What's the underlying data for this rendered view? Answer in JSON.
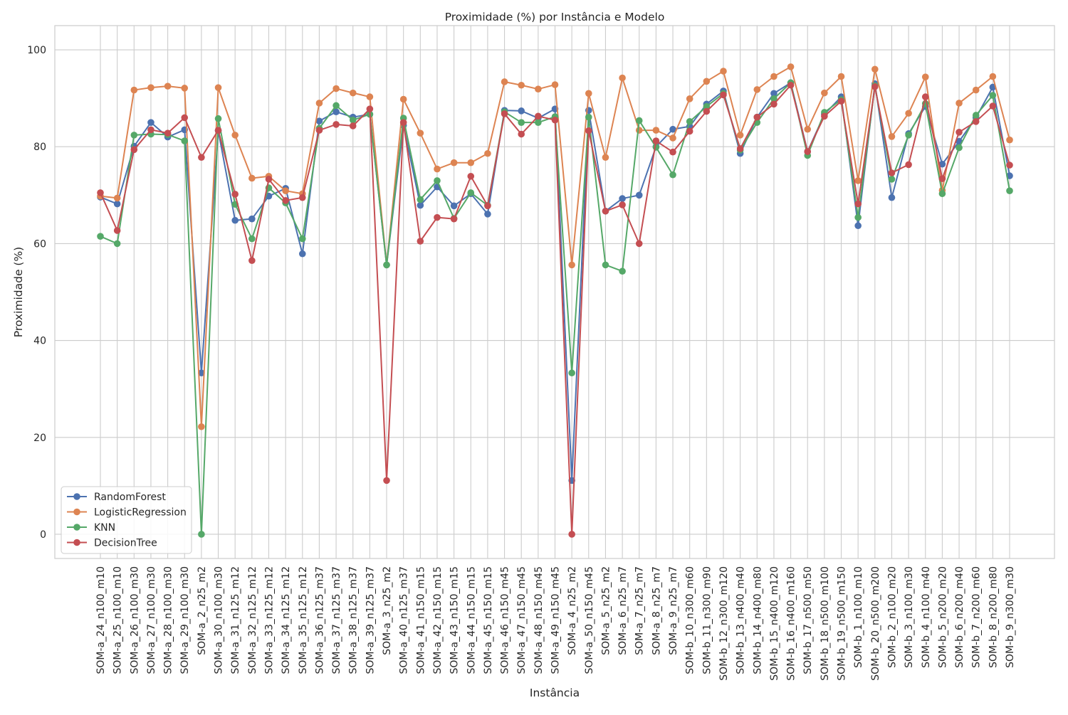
{
  "chart_data": {
    "type": "line",
    "title": "Proximidade (%) por Instância e Modelo",
    "xlabel": "Instância",
    "ylabel": "Proximidade (%)",
    "ylim": [
      -5,
      105
    ],
    "yticks": [
      "0",
      "20",
      "40",
      "60",
      "80",
      "100"
    ],
    "grid": true,
    "legend_position": "lower-left",
    "categories": [
      "SOM-a_24_n100_m10",
      "SOM-a_25_n100_m10",
      "SOM-a_26_n100_m30",
      "SOM-a_27_n100_m30",
      "SOM-a_28_n100_m30",
      "SOM-a_29_n100_m30",
      "SOM-a_2_n25_m2",
      "SOM-a_30_n100_m30",
      "SOM-a_31_n125_m12",
      "SOM-a_32_n125_m12",
      "SOM-a_33_n125_m12",
      "SOM-a_34_n125_m12",
      "SOM-a_35_n125_m12",
      "SOM-a_36_n125_m37",
      "SOM-a_37_n125_m37",
      "SOM-a_38_n125_m37",
      "SOM-a_39_n125_m37",
      "SOM-a_3_n25_m2",
      "SOM-a_40_n125_m37",
      "SOM-a_41_n150_m15",
      "SOM-a_42_n150_m15",
      "SOM-a_43_n150_m15",
      "SOM-a_44_n150_m15",
      "SOM-a_45_n150_m15",
      "SOM-a_46_n150_m45",
      "SOM-a_47_n150_m45",
      "SOM-a_48_n150_m45",
      "SOM-a_49_n150_m45",
      "SOM-a_4_n25_m2",
      "SOM-a_50_n150_m45",
      "SOM-a_5_n25_m2",
      "SOM-a_6_n25_m7",
      "SOM-a_7_n25_m7",
      "SOM-a_8_n25_m7",
      "SOM-a_9_n25_m7",
      "SOM-b_10_n300_m60",
      "SOM-b_11_n300_m90",
      "SOM-b_12_n300_m120",
      "SOM-b_13_n400_m40",
      "SOM-b_14_n400_m80",
      "SOM-b_15_n400_m120",
      "SOM-b_16_n400_m160",
      "SOM-b_17_n500_m50",
      "SOM-b_18_n500_m100",
      "SOM-b_19_n500_m150",
      "SOM-b_1_n100_m10",
      "SOM-b_20_n500_m200",
      "SOM-b_2_n100_m20",
      "SOM-b_3_n100_m30",
      "SOM-b_4_n100_m40",
      "SOM-b_5_n200_m20",
      "SOM-b_6_n200_m40",
      "SOM-b_7_n200_m60",
      "SOM-b_8_n200_m80",
      "SOM-b_9_n300_m30"
    ],
    "series": [
      {
        "name": "RandomForest",
        "color": "#4c72b0",
        "values": [
          69.6,
          68.2,
          80.1,
          85.0,
          82.0,
          83.5,
          33.3,
          83.3,
          64.8,
          65.1,
          69.8,
          71.4,
          57.9,
          85.3,
          87.2,
          86.1,
          86.7,
          55.6,
          84.4,
          67.9,
          71.7,
          67.8,
          70.3,
          66.1,
          87.5,
          87.4,
          85.9,
          87.8,
          11.1,
          87.5,
          66.7,
          69.3,
          70.0,
          80.0,
          83.6,
          84.2,
          88.8,
          91.5,
          78.6,
          86.1,
          91.0,
          93.2,
          79.0,
          86.7,
          90.3,
          63.7,
          93.0,
          69.5,
          82.7,
          88.3,
          76.4,
          81.1,
          86.0,
          92.3,
          74.0
        ]
      },
      {
        "name": "LogisticRegression",
        "color": "#dd8452",
        "values": [
          69.8,
          69.4,
          91.7,
          92.2,
          92.5,
          92.1,
          22.2,
          92.2,
          82.4,
          73.5,
          73.9,
          70.9,
          70.3,
          89.0,
          92.0,
          91.1,
          90.3,
          55.6,
          89.8,
          82.8,
          75.4,
          76.7,
          76.7,
          78.6,
          93.4,
          92.7,
          91.9,
          92.8,
          55.6,
          91.0,
          77.8,
          94.2,
          83.4,
          83.4,
          81.8,
          89.9,
          93.5,
          95.6,
          82.4,
          91.8,
          94.5,
          96.5,
          83.6,
          91.1,
          94.5,
          73.0,
          96.0,
          82.1,
          86.9,
          94.4,
          71.0,
          89.0,
          91.7,
          94.5,
          81.4
        ]
      },
      {
        "name": "KNN",
        "color": "#55a868",
        "values": [
          61.5,
          60.0,
          82.4,
          82.6,
          82.5,
          81.2,
          0.0,
          85.8,
          68.1,
          61.0,
          71.5,
          68.4,
          61.0,
          83.8,
          88.5,
          85.5,
          86.7,
          55.6,
          85.9,
          69.1,
          73.0,
          65.2,
          70.5,
          67.9,
          87.2,
          85.0,
          85.0,
          86.2,
          33.3,
          86.1,
          55.6,
          54.3,
          85.4,
          79.9,
          74.2,
          85.2,
          88.3,
          91.0,
          79.3,
          85.0,
          89.9,
          93.2,
          78.2,
          87.1,
          89.7,
          65.4,
          92.6,
          73.3,
          82.4,
          88.9,
          70.3,
          79.8,
          86.5,
          90.6,
          70.9
        ]
      },
      {
        "name": "DecisionTree",
        "color": "#c44e52",
        "values": [
          70.5,
          62.7,
          79.4,
          83.5,
          82.8,
          86.0,
          77.8,
          83.4,
          70.2,
          56.5,
          73.3,
          68.9,
          69.5,
          83.4,
          84.6,
          84.3,
          87.8,
          11.1,
          85.0,
          60.5,
          65.4,
          65.1,
          73.9,
          67.8,
          86.8,
          82.6,
          86.3,
          85.5,
          0.0,
          83.3,
          66.7,
          68.0,
          60.0,
          81.2,
          78.9,
          83.2,
          87.3,
          90.7,
          79.6,
          86.1,
          88.8,
          92.7,
          79.0,
          86.3,
          89.4,
          68.2,
          92.4,
          74.6,
          76.3,
          90.3,
          73.4,
          83.0,
          85.2,
          88.4,
          76.2
        ]
      }
    ]
  }
}
